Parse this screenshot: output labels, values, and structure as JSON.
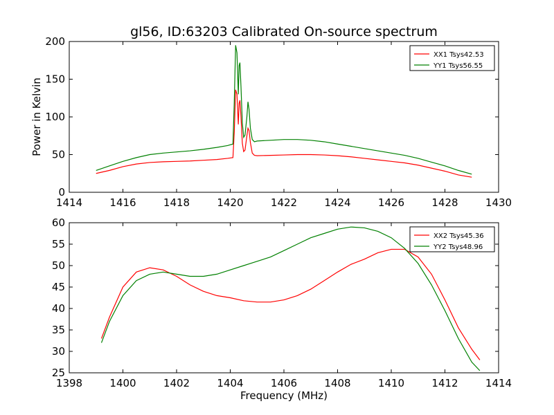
{
  "figure": {
    "title": "gl56, ID:63203 Calibrated On-source spectrum"
  },
  "chart_data": [
    {
      "type": "line",
      "title": "gl56, ID:63203 Calibrated On-source spectrum",
      "xlabel": "",
      "ylabel": "Power in Kelvin",
      "xlim": [
        1414,
        1430
      ],
      "ylim": [
        0,
        200
      ],
      "xticks": [
        "1414",
        "1416",
        "1418",
        "1420",
        "1422",
        "1424",
        "1426",
        "1428",
        "1430"
      ],
      "yticks": [
        "0",
        "50",
        "100",
        "150",
        "200"
      ],
      "grid": false,
      "legend_position": "top-right",
      "series": [
        {
          "name": "XX1 Tsys42.53",
          "color": "#ff0000",
          "x": [
            1415.0,
            1415.5,
            1416.0,
            1416.5,
            1417.0,
            1417.5,
            1418.0,
            1418.5,
            1419.0,
            1419.5,
            1419.9,
            1420.1,
            1420.15,
            1420.2,
            1420.25,
            1420.3,
            1420.33,
            1420.36,
            1420.4,
            1420.45,
            1420.5,
            1420.55,
            1420.62,
            1420.66,
            1420.7,
            1420.75,
            1420.82,
            1420.9,
            1421.0,
            1421.5,
            1422.0,
            1422.5,
            1423.0,
            1423.5,
            1424.0,
            1424.5,
            1425.0,
            1425.5,
            1426.0,
            1426.5,
            1427.0,
            1427.5,
            1428.0,
            1428.5,
            1429.0
          ],
          "y": [
            25,
            29,
            34,
            37.5,
            39.5,
            40.5,
            41,
            41.5,
            42.5,
            43.5,
            45,
            46,
            80,
            136,
            130,
            90,
            118,
            122,
            100,
            65,
            54,
            56,
            75,
            85,
            82,
            66,
            52,
            49,
            48.5,
            49,
            49.5,
            50,
            50,
            49.5,
            48.5,
            47,
            45,
            43,
            41,
            39,
            36,
            32,
            28,
            23,
            20
          ]
        },
        {
          "name": "YY1 Tsys56.55",
          "color": "#008000",
          "x": [
            1415.0,
            1415.5,
            1416.0,
            1416.5,
            1417.0,
            1417.5,
            1418.0,
            1418.5,
            1419.0,
            1419.5,
            1419.9,
            1420.1,
            1420.15,
            1420.2,
            1420.25,
            1420.3,
            1420.33,
            1420.36,
            1420.4,
            1420.45,
            1420.5,
            1420.55,
            1420.62,
            1420.66,
            1420.7,
            1420.75,
            1420.82,
            1420.9,
            1421.0,
            1421.5,
            1422.0,
            1422.5,
            1423.0,
            1423.5,
            1424.0,
            1424.5,
            1425.0,
            1425.5,
            1426.0,
            1426.5,
            1427.0,
            1427.5,
            1428.0,
            1428.5,
            1429.0
          ],
          "y": [
            29,
            35,
            41,
            46,
            50,
            52,
            53.5,
            55,
            57,
            59.5,
            62,
            64,
            120,
            195,
            185,
            130,
            168,
            172,
            140,
            92,
            73,
            76,
            100,
            120,
            110,
            85,
            70,
            67,
            68,
            69,
            70,
            70,
            69,
            67,
            64,
            61,
            58,
            55,
            52,
            49,
            45,
            40,
            35,
            29,
            24
          ]
        }
      ]
    },
    {
      "type": "line",
      "title": "",
      "xlabel": "Frequency (MHz)",
      "ylabel": "",
      "xlim": [
        1398,
        1414
      ],
      "ylim": [
        25,
        60
      ],
      "xticks": [
        "1398",
        "1400",
        "1402",
        "1404",
        "1406",
        "1408",
        "1410",
        "1412",
        "1414"
      ],
      "yticks": [
        "25",
        "30",
        "35",
        "40",
        "45",
        "50",
        "55",
        "60"
      ],
      "grid": false,
      "legend_position": "top-right",
      "series": [
        {
          "name": "XX2 Tsys45.36",
          "color": "#ff0000",
          "x": [
            1399.2,
            1399.5,
            1400.0,
            1400.5,
            1401.0,
            1401.5,
            1402.0,
            1402.5,
            1403.0,
            1403.5,
            1404.0,
            1404.5,
            1405.0,
            1405.5,
            1406.0,
            1406.5,
            1407.0,
            1407.5,
            1408.0,
            1408.5,
            1409.0,
            1409.5,
            1410.0,
            1410.5,
            1411.0,
            1411.5,
            1412.0,
            1412.5,
            1413.0,
            1413.3
          ],
          "y": [
            33,
            38,
            45,
            48.5,
            49.5,
            49,
            47.5,
            45.5,
            44,
            43,
            42.5,
            41.8,
            41.5,
            41.5,
            42,
            43,
            44.5,
            46.5,
            48.5,
            50.3,
            51.5,
            53,
            53.8,
            53.8,
            52,
            48,
            42,
            35.5,
            30.5,
            28
          ]
        },
        {
          "name": "YY2 Tsys48.96",
          "color": "#008000",
          "x": [
            1399.2,
            1399.5,
            1400.0,
            1400.5,
            1401.0,
            1401.5,
            1402.0,
            1402.5,
            1403.0,
            1403.5,
            1404.0,
            1404.5,
            1405.0,
            1405.5,
            1406.0,
            1406.5,
            1407.0,
            1407.5,
            1408.0,
            1408.5,
            1409.0,
            1409.5,
            1410.0,
            1410.5,
            1411.0,
            1411.5,
            1412.0,
            1412.5,
            1413.0,
            1413.3
          ],
          "y": [
            32,
            37,
            43,
            46.5,
            48,
            48.5,
            48,
            47.5,
            47.5,
            48,
            49,
            50,
            51,
            52,
            53.5,
            55,
            56.5,
            57.5,
            58.5,
            59,
            58.8,
            58,
            56.5,
            54,
            50.5,
            45.5,
            39.5,
            33,
            27.5,
            25.5
          ]
        }
      ]
    }
  ]
}
